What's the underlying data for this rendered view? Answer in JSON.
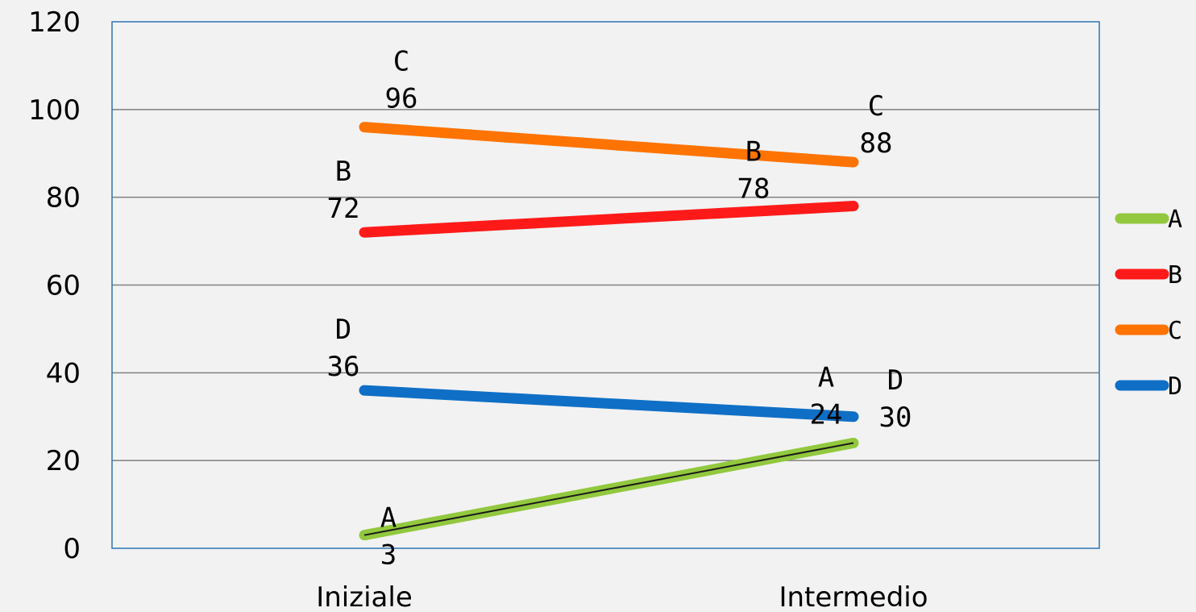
{
  "chart_data": {
    "type": "line",
    "title": "",
    "xlabel": "",
    "ylabel": "",
    "categories": [
      "Iniziale",
      "Intermedio"
    ],
    "ylim": [
      0,
      120
    ],
    "yticks": [
      0,
      20,
      40,
      60,
      80,
      100,
      120
    ],
    "grid": true,
    "legend_position": "right",
    "series": [
      {
        "name": "A",
        "values": [
          3,
          24
        ],
        "color": "#92c83e"
      },
      {
        "name": "B",
        "values": [
          72,
          78
        ],
        "color": "#ff1a1a"
      },
      {
        "name": "C",
        "values": [
          96,
          88
        ],
        "color": "#ff7300"
      },
      {
        "name": "D",
        "values": [
          36,
          30
        ],
        "color": "#0f6fc6"
      }
    ],
    "frame_color": "#2e75b6",
    "grid_color": "#808080"
  }
}
